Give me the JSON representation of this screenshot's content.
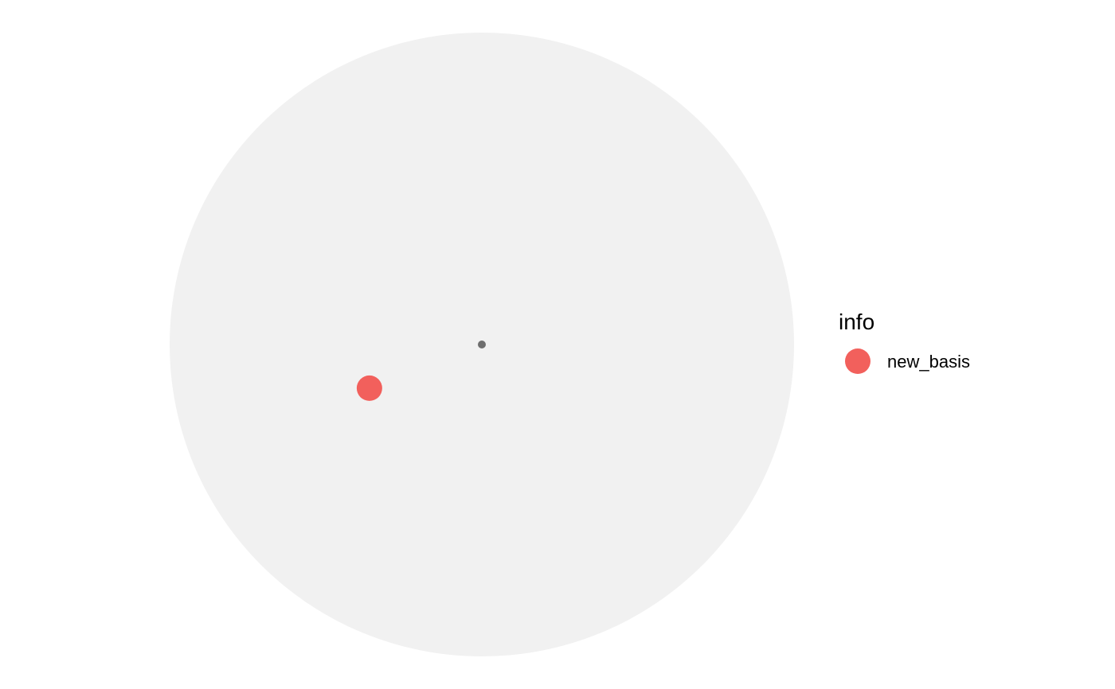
{
  "chart_data": {
    "type": "scatter",
    "title": "",
    "xlabel": "",
    "ylabel": "",
    "coordinate_system": "polar-unit-disk",
    "disk_color": "#F1F1F1",
    "grid": false,
    "legend_position": "right",
    "center_marker": {
      "x": 0,
      "y": 0,
      "color": "#6E6E6E"
    },
    "legend": {
      "title": "info",
      "entries": [
        {
          "label": "new_basis",
          "color": "#F2605C"
        }
      ]
    },
    "series": [
      {
        "name": "new_basis",
        "color": "#F2605C",
        "points": [
          {
            "x": -0.36,
            "y": -0.14
          }
        ]
      }
    ]
  }
}
